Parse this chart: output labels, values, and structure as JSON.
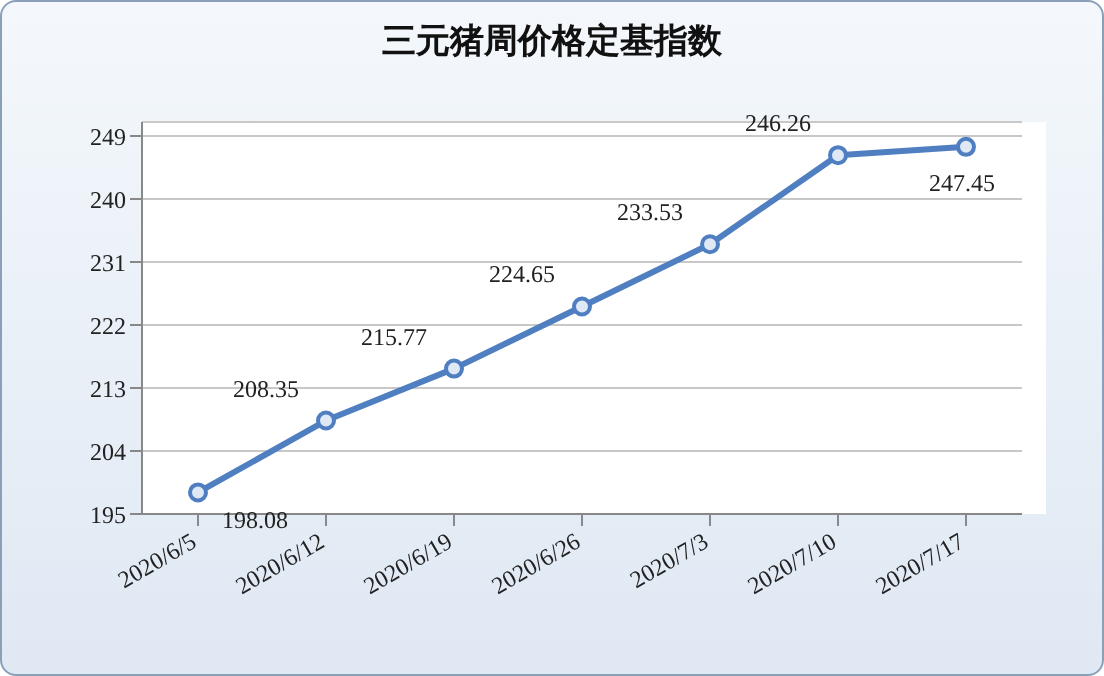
{
  "chart_data": {
    "type": "line",
    "title": "三元猪周价格定基指数",
    "categories": [
      "2020/6/5",
      "2020/6/12",
      "2020/6/19",
      "2020/6/26",
      "2020/7/3",
      "2020/7/10",
      "2020/7/17"
    ],
    "series": [
      {
        "color": "#4f7fc0",
        "values": [
          198.08,
          208.35,
          215.77,
          224.65,
          233.53,
          246.26,
          247.45
        ]
      }
    ],
    "ylim": [
      195,
      251
    ],
    "yticks": [
      195,
      204,
      213,
      222,
      231,
      240,
      249
    ],
    "grid": "y",
    "legend": false,
    "marker": "circle",
    "data_labels": true
  }
}
